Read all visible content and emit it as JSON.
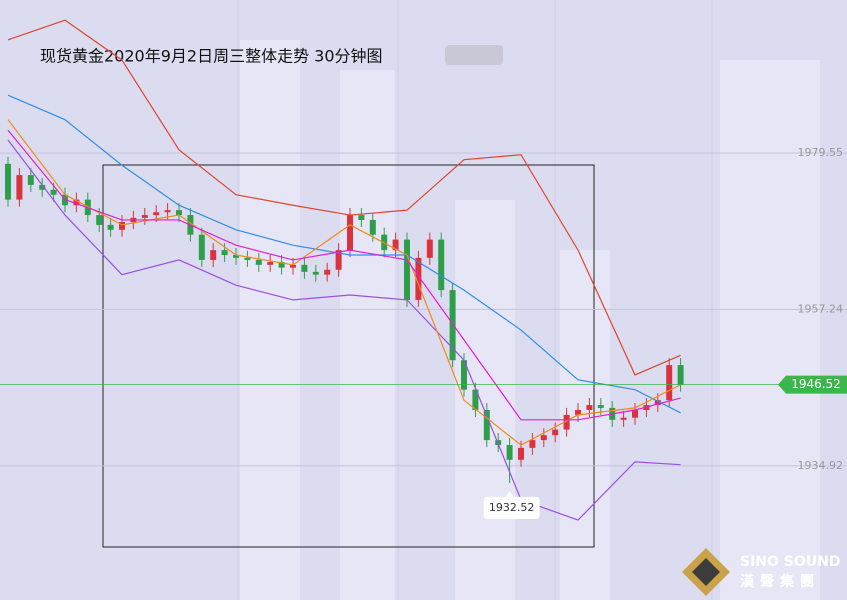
{
  "chart_data": {
    "type": "candlestick",
    "title": "现货黄金2020年9月2日周三整体走势 30分钟图",
    "ylim": [
      1915.8,
      2001.37
    ],
    "yticks": [
      1979.55,
      1957.24,
      1934.92
    ],
    "grid": true,
    "up_color": "#d9333f",
    "down_color": "#2e9e4a",
    "candles": {
      "open": [
        1978.0,
        1972.9,
        1976.4,
        1975.0,
        1974.3,
        1973.6,
        1972.1,
        1972.9,
        1970.7,
        1969.3,
        1968.6,
        1969.7,
        1970.3,
        1970.7,
        1971.1,
        1971.4,
        1970.7,
        1967.9,
        1964.3,
        1965.7,
        1965.0,
        1964.6,
        1964.3,
        1963.6,
        1964.0,
        1963.2,
        1963.6,
        1962.6,
        1962.2,
        1962.9,
        1965.7,
        1970.7,
        1970.0,
        1967.9,
        1965.7,
        1967.2,
        1958.6,
        1964.6,
        1967.2,
        1960.0,
        1950.0,
        1945.8,
        1942.9,
        1938.6,
        1937.9,
        1935.8,
        1937.5,
        1938.6,
        1939.3,
        1940.1,
        1942.2,
        1942.9,
        1943.6,
        1943.2,
        1941.5,
        1941.8,
        1942.9,
        1943.6,
        1944.3,
        1949.3
      ],
      "high": [
        1979.0,
        1977.4,
        1977.4,
        1976.0,
        1975.3,
        1974.6,
        1973.9,
        1973.9,
        1971.7,
        1970.3,
        1970.7,
        1971.3,
        1971.7,
        1972.1,
        1972.4,
        1972.4,
        1971.7,
        1968.9,
        1966.7,
        1966.7,
        1966.0,
        1965.6,
        1965.3,
        1965.0,
        1965.0,
        1964.6,
        1964.6,
        1963.6,
        1963.9,
        1966.7,
        1971.7,
        1971.7,
        1971.0,
        1968.9,
        1968.2,
        1968.2,
        1965.6,
        1968.2,
        1968.2,
        1961.0,
        1951.0,
        1946.8,
        1943.9,
        1939.6,
        1938.9,
        1938.5,
        1939.6,
        1940.3,
        1941.1,
        1943.2,
        1943.9,
        1944.6,
        1944.6,
        1944.2,
        1942.8,
        1943.9,
        1944.6,
        1945.3,
        1950.3,
        1950.3
      ],
      "low": [
        1971.9,
        1971.9,
        1974.0,
        1973.3,
        1972.6,
        1971.1,
        1971.1,
        1969.7,
        1968.3,
        1967.6,
        1967.6,
        1968.7,
        1969.3,
        1969.7,
        1970.1,
        1969.7,
        1966.9,
        1963.3,
        1963.3,
        1964.0,
        1963.6,
        1963.3,
        1962.6,
        1962.6,
        1962.2,
        1962.2,
        1961.6,
        1961.2,
        1961.2,
        1961.9,
        1964.7,
        1969.0,
        1966.9,
        1964.7,
        1964.7,
        1957.6,
        1957.6,
        1963.6,
        1959.0,
        1949.0,
        1944.8,
        1941.9,
        1937.6,
        1936.9,
        1932.5,
        1934.8,
        1936.5,
        1937.6,
        1938.3,
        1939.1,
        1941.2,
        1941.9,
        1942.2,
        1940.5,
        1940.5,
        1940.8,
        1941.9,
        1942.6,
        1943.3,
        1945.5
      ],
      "close": [
        1972.9,
        1976.4,
        1975.0,
        1974.3,
        1973.6,
        1972.1,
        1972.9,
        1970.7,
        1969.3,
        1968.6,
        1969.7,
        1970.3,
        1970.7,
        1971.1,
        1971.4,
        1970.7,
        1967.9,
        1964.3,
        1965.7,
        1965.0,
        1964.6,
        1964.3,
        1963.6,
        1964.0,
        1963.2,
        1963.6,
        1962.6,
        1962.2,
        1962.9,
        1965.7,
        1970.7,
        1970.0,
        1967.9,
        1965.7,
        1967.2,
        1958.6,
        1964.6,
        1967.2,
        1960.0,
        1950.0,
        1945.8,
        1942.9,
        1938.6,
        1937.9,
        1935.8,
        1937.5,
        1938.6,
        1939.3,
        1940.1,
        1942.2,
        1942.9,
        1943.6,
        1943.2,
        1941.5,
        1941.8,
        1942.9,
        1943.6,
        1944.3,
        1949.3,
        1946.5
      ]
    },
    "lines": {
      "x": [
        0,
        5,
        10,
        15,
        20,
        25,
        30,
        35,
        40,
        45,
        50,
        55,
        59
      ],
      "series": [
        {
          "color": "#e0452f",
          "values": [
            1995.7,
            1998.5,
            1992.8,
            1980.0,
            1973.6,
            1972.1,
            1970.7,
            1971.4,
            1978.6,
            1979.3,
            1965.7,
            1947.9,
            1950.7
          ]
        },
        {
          "color": "#9b4fe0",
          "values": [
            1981.4,
            1970.7,
            1962.2,
            1964.3,
            1960.7,
            1958.6,
            1959.3,
            1958.6,
            1950.0,
            1930.1,
            1927.2,
            1935.5,
            1935.1
          ]
        },
        {
          "color": "#2f8fe6",
          "values": [
            1987.8,
            1984.3,
            1977.8,
            1972.1,
            1968.6,
            1966.4,
            1965.0,
            1965.0,
            1960.0,
            1954.3,
            1947.2,
            1945.8,
            1942.5
          ]
        },
        {
          "color": "#f08a1c",
          "values": [
            1984.3,
            1973.6,
            1969.3,
            1970.7,
            1965.0,
            1963.6,
            1969.3,
            1965.0,
            1944.3,
            1937.9,
            1942.2,
            1943.2,
            1946.5
          ]
        },
        {
          "color": "#e020d0",
          "values": [
            1982.8,
            1972.9,
            1970.0,
            1970.0,
            1966.4,
            1964.3,
            1965.7,
            1964.3,
            1952.9,
            1941.5,
            1941.5,
            1942.9,
            1944.6
          ]
        }
      ]
    },
    "last_price": 1946.52,
    "last_price_color": "#3cb54a",
    "low_annotation": {
      "index": 44,
      "value": 1932.52
    },
    "logo": {
      "en": "SINO SOUND",
      "cn": "漢聲集團"
    }
  }
}
